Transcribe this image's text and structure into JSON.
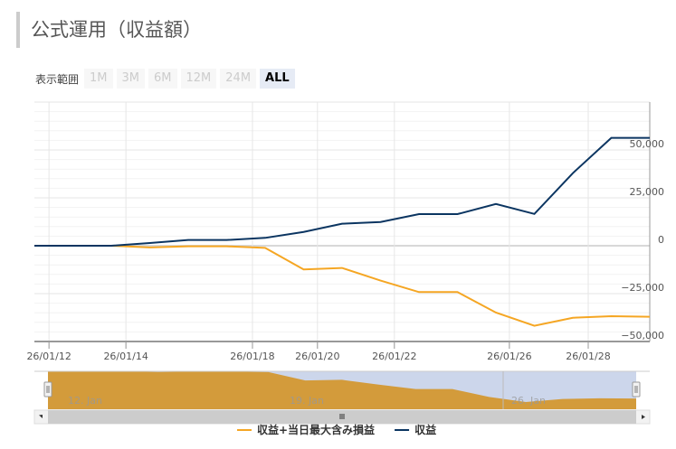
{
  "title": "公式運用（収益額）",
  "range_selector": {
    "label": "表示範囲",
    "buttons": [
      "1M",
      "3M",
      "6M",
      "12M",
      "24M",
      "ALL"
    ],
    "selected": "ALL"
  },
  "chart_data": {
    "type": "line",
    "x": [
      "26/01/12",
      "26/01/13",
      "26/01/14",
      "26/01/15",
      "26/01/16",
      "26/01/17",
      "26/01/19",
      "26/01/20",
      "26/01/21",
      "26/01/22",
      "26/01/23",
      "26/01/24",
      "26/01/26",
      "26/01/27",
      "26/01/28",
      "26/01/29",
      "26/01/30"
    ],
    "series": [
      {
        "name": "収益+当日最大含み損益",
        "color": "#f5a623",
        "values": [
          0,
          0,
          0,
          -900,
          -300,
          -300,
          -1100,
          -12400,
          -11600,
          -18200,
          -24200,
          -24200,
          -34900,
          -41800,
          -37600,
          -36800,
          -37100
        ]
      },
      {
        "name": "収益",
        "color": "#0b3561",
        "values": [
          0,
          0,
          0,
          1400,
          3000,
          3000,
          4100,
          7200,
          11500,
          12400,
          16500,
          16500,
          21800,
          16600,
          37900,
          56300,
          56300
        ]
      }
    ],
    "x_ticks": [
      "26/01/12",
      "26/01/14",
      "26/01/18",
      "26/01/20",
      "26/01/22",
      "26/01/26",
      "26/01/28"
    ],
    "y_ticks": [
      "50,000",
      "25,000",
      "0",
      "−25,000",
      "−50,000"
    ],
    "ylim": [
      -50000,
      75000
    ],
    "grid": true,
    "legend": "bottom",
    "navigator": {
      "labels": [
        "12. Jan",
        "19. Jan",
        "26. Jan"
      ],
      "fill": "#d39b3b",
      "mask": "#ccd6eb"
    }
  }
}
